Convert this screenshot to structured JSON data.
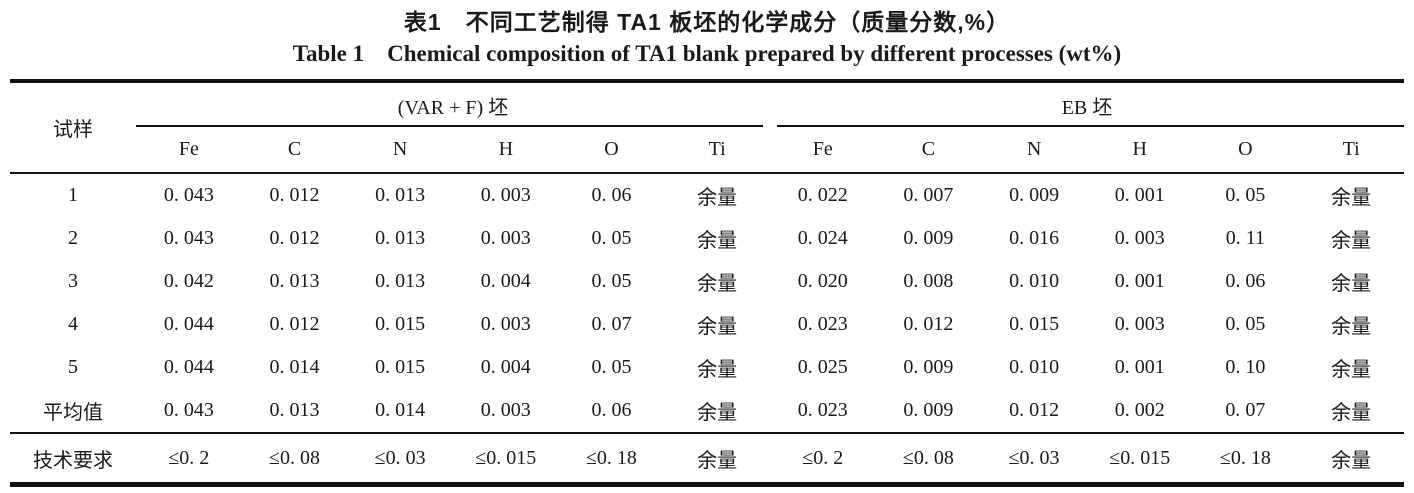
{
  "colors": {
    "background": "#ffffff",
    "text": "#1a1a1a",
    "rule": "#111111"
  },
  "titles": {
    "zh": "表1　不同工艺制得 TA1 板坯的化学成分（质量分数,%）",
    "en": "Table 1　Chemical composition of TA1 blank prepared by different processes (wt%)"
  },
  "table": {
    "sample_header": "试样",
    "groups": [
      {
        "label": "(VAR + F) 坯"
      },
      {
        "label": "EB 坯"
      }
    ],
    "col_headers": [
      "Fe",
      "C",
      "N",
      "H",
      "O",
      "Ti"
    ],
    "rows": [
      {
        "label": "1",
        "cells": [
          "0. 043",
          "0. 012",
          "0. 013",
          "0. 003",
          "0. 06",
          "余量",
          "0. 022",
          "0. 007",
          "0. 009",
          "0. 001",
          "0. 05",
          "余量"
        ]
      },
      {
        "label": "2",
        "cells": [
          "0. 043",
          "0. 012",
          "0. 013",
          "0. 003",
          "0. 05",
          "余量",
          "0. 024",
          "0. 009",
          "0. 016",
          "0. 003",
          "0. 11",
          "余量"
        ]
      },
      {
        "label": "3",
        "cells": [
          "0. 042",
          "0. 013",
          "0. 013",
          "0. 004",
          "0. 05",
          "余量",
          "0. 020",
          "0. 008",
          "0. 010",
          "0. 001",
          "0. 06",
          "余量"
        ]
      },
      {
        "label": "4",
        "cells": [
          "0. 044",
          "0. 012",
          "0. 015",
          "0. 003",
          "0. 07",
          "余量",
          "0. 023",
          "0. 012",
          "0. 015",
          "0. 003",
          "0. 05",
          "余量"
        ]
      },
      {
        "label": "5",
        "cells": [
          "0. 044",
          "0. 014",
          "0. 015",
          "0. 004",
          "0. 05",
          "余量",
          "0. 025",
          "0. 009",
          "0. 010",
          "0. 001",
          "0. 10",
          "余量"
        ]
      },
      {
        "label": "平均值",
        "cells": [
          "0. 043",
          "0. 013",
          "0. 014",
          "0. 003",
          "0. 06",
          "余量",
          "0. 023",
          "0. 009",
          "0. 012",
          "0. 002",
          "0. 07",
          "余量"
        ]
      }
    ],
    "req_row": {
      "label": "技术要求",
      "cells": [
        "≤0. 2",
        "≤0. 08",
        "≤0. 03",
        "≤0. 015",
        "≤0. 18",
        "余量",
        "≤0. 2",
        "≤0. 08",
        "≤0. 03",
        "≤0. 015",
        "≤0. 18",
        "余量"
      ]
    }
  }
}
